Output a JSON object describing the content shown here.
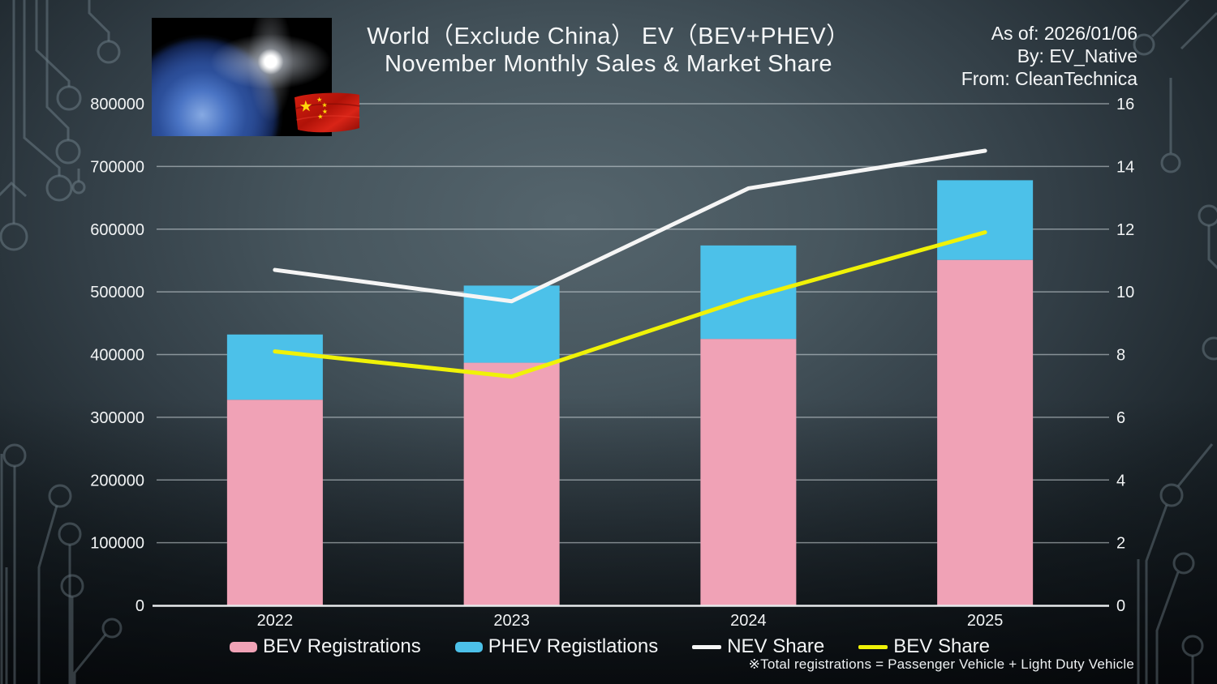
{
  "header": {
    "title_line1": "World（Exclude China） EV（BEV+PHEV）",
    "title_line2": "November Monthly Sales & Market Share",
    "as_of": "As of: 2026/01/06",
    "by": "By: EV_Native",
    "from": "From: CleanTechnica"
  },
  "footnote": "※Total registrations = Passenger Vehicle + Light Duty Vehicle",
  "legend": [
    {
      "label": "BEV Registrations",
      "type": "box",
      "color": "#f0a2b6"
    },
    {
      "label": "PHEV Registlations",
      "type": "box",
      "color": "#4cc1e9"
    },
    {
      "label": "NEV Share",
      "type": "line",
      "color": "#f5f5f5"
    },
    {
      "label": "BEV Share",
      "type": "line",
      "color": "#f0f207"
    }
  ],
  "chart_data": {
    "type": "bar",
    "subtype": "stacked bars with line overlay (dual axis)",
    "title": "World (Exclude China) EV (BEV+PHEV) November Monthly Sales & Market Share",
    "categories": [
      "2022",
      "2023",
      "2024",
      "2025"
    ],
    "series": [
      {
        "name": "BEV Registrations",
        "type": "bar",
        "axis": "left",
        "color": "#f0a2b6",
        "values": [
          328000,
          387000,
          425000,
          551000
        ]
      },
      {
        "name": "PHEV Registlations",
        "type": "bar",
        "axis": "left",
        "color": "#4cc1e9",
        "values": [
          104000,
          123000,
          149000,
          127000
        ]
      },
      {
        "name": "NEV Share",
        "type": "line",
        "axis": "right",
        "color": "#f5f5f5",
        "values": [
          10.7,
          9.7,
          13.3,
          14.5
        ]
      },
      {
        "name": "BEV Share",
        "type": "line",
        "axis": "right",
        "color": "#f0f207",
        "values": [
          8.1,
          7.3,
          9.8,
          11.9
        ]
      }
    ],
    "left_axis": {
      "min": 0,
      "max": 800000,
      "step": 100000,
      "ticks": [
        "0",
        "100000",
        "200000",
        "300000",
        "400000",
        "500000",
        "600000",
        "700000",
        "800000"
      ]
    },
    "right_axis": {
      "min": 0,
      "max": 16,
      "step": 2,
      "ticks": [
        "0",
        "2",
        "4",
        "6",
        "8",
        "10",
        "12",
        "14",
        "16"
      ]
    },
    "grid": true,
    "legend_position": "bottom"
  }
}
